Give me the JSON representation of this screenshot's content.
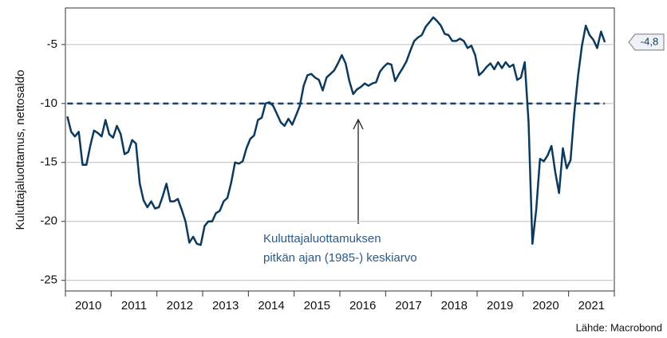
{
  "chart_data": {
    "type": "line",
    "y_axis_label": "Kuluttajaluottamus, nettosaldo",
    "source": "Lähde: Macrobond",
    "categories": [
      "2010",
      "2011",
      "2012",
      "2013",
      "2014",
      "2015",
      "2016",
      "2017",
      "2018",
      "2019",
      "2020",
      "2021"
    ],
    "series": [
      {
        "name": "Kuluttajaluottamus",
        "color": "#0b3a5e",
        "values": [
          [
            -11.1,
            -12.4,
            -12.8,
            -12.4,
            -15.2,
            -15.2,
            -13.6,
            -12.3,
            -12.5,
            -12.8,
            -11.4,
            -12.6
          ],
          [
            -12.9,
            -11.9,
            -12.6,
            -14.3,
            -14.1,
            -13.1,
            -13.4,
            -16.8,
            -18.2,
            -18.8,
            -18.3,
            -18.9
          ],
          [
            -18.8,
            -17.9,
            -16.8,
            -18.3,
            -18.3,
            -18.1,
            -19.0,
            -20.0,
            -21.8,
            -21.3,
            -21.9,
            -22.0
          ],
          [
            -20.4,
            -20.0,
            -20.0,
            -19.3,
            -19.1,
            -18.3,
            -18.0,
            -16.7,
            -15.0,
            -15.1,
            -14.9,
            -13.8
          ],
          [
            -13.0,
            -12.7,
            -11.4,
            -11.2,
            -10.0,
            -9.9,
            -10.2,
            -10.9,
            -11.6,
            -11.9,
            -11.3,
            -11.8
          ],
          [
            -11.0,
            -10.2,
            -8.5,
            -7.6,
            -7.5,
            -7.8,
            -8.0,
            -8.9,
            -7.8,
            -7.5,
            -7.2,
            -6.6
          ],
          [
            -5.9,
            -6.6,
            -8.1,
            -9.2,
            -8.8,
            -8.6,
            -8.3,
            -8.5,
            -8.3,
            -8.2,
            -7.3,
            -6.9
          ],
          [
            -6.6,
            -6.7,
            -8.1,
            -7.5,
            -7.0,
            -6.4,
            -5.5,
            -4.7,
            -4.4,
            -4.2,
            -3.5,
            -3.1
          ],
          [
            -2.7,
            -3.0,
            -3.4,
            -4.1,
            -4.2,
            -4.7,
            -4.7,
            -4.5,
            -4.7,
            -5.3,
            -5.1,
            -5.9
          ],
          [
            -7.6,
            -7.3,
            -6.9,
            -6.6,
            -7.1,
            -6.5,
            -7.0,
            -6.5,
            -6.9,
            -6.7,
            -8.0,
            -7.8
          ],
          [
            -6.5,
            -11.6,
            -21.9,
            -19.0,
            -14.7,
            -14.9,
            -14.4,
            -13.6,
            -15.8,
            -17.6,
            -13.8,
            -15.5
          ],
          [
            -14.8,
            -10.8,
            -7.6,
            -5.1,
            -3.4,
            -4.2,
            -4.6,
            -5.3,
            -3.9,
            -4.8
          ]
        ]
      }
    ],
    "last_label": {
      "value": -4.8,
      "label": "-4,8"
    },
    "reference_line": {
      "value": -10,
      "color": "#1f3f66"
    },
    "annotation": [
      "Kuluttajaluottamuksen",
      "pitkän ajan (1985-) keskiarvo"
    ],
    "ylim": [
      -25.9,
      -1.9
    ],
    "yticks": [
      -25,
      -20,
      -15,
      -10,
      -5
    ],
    "grid": true
  }
}
